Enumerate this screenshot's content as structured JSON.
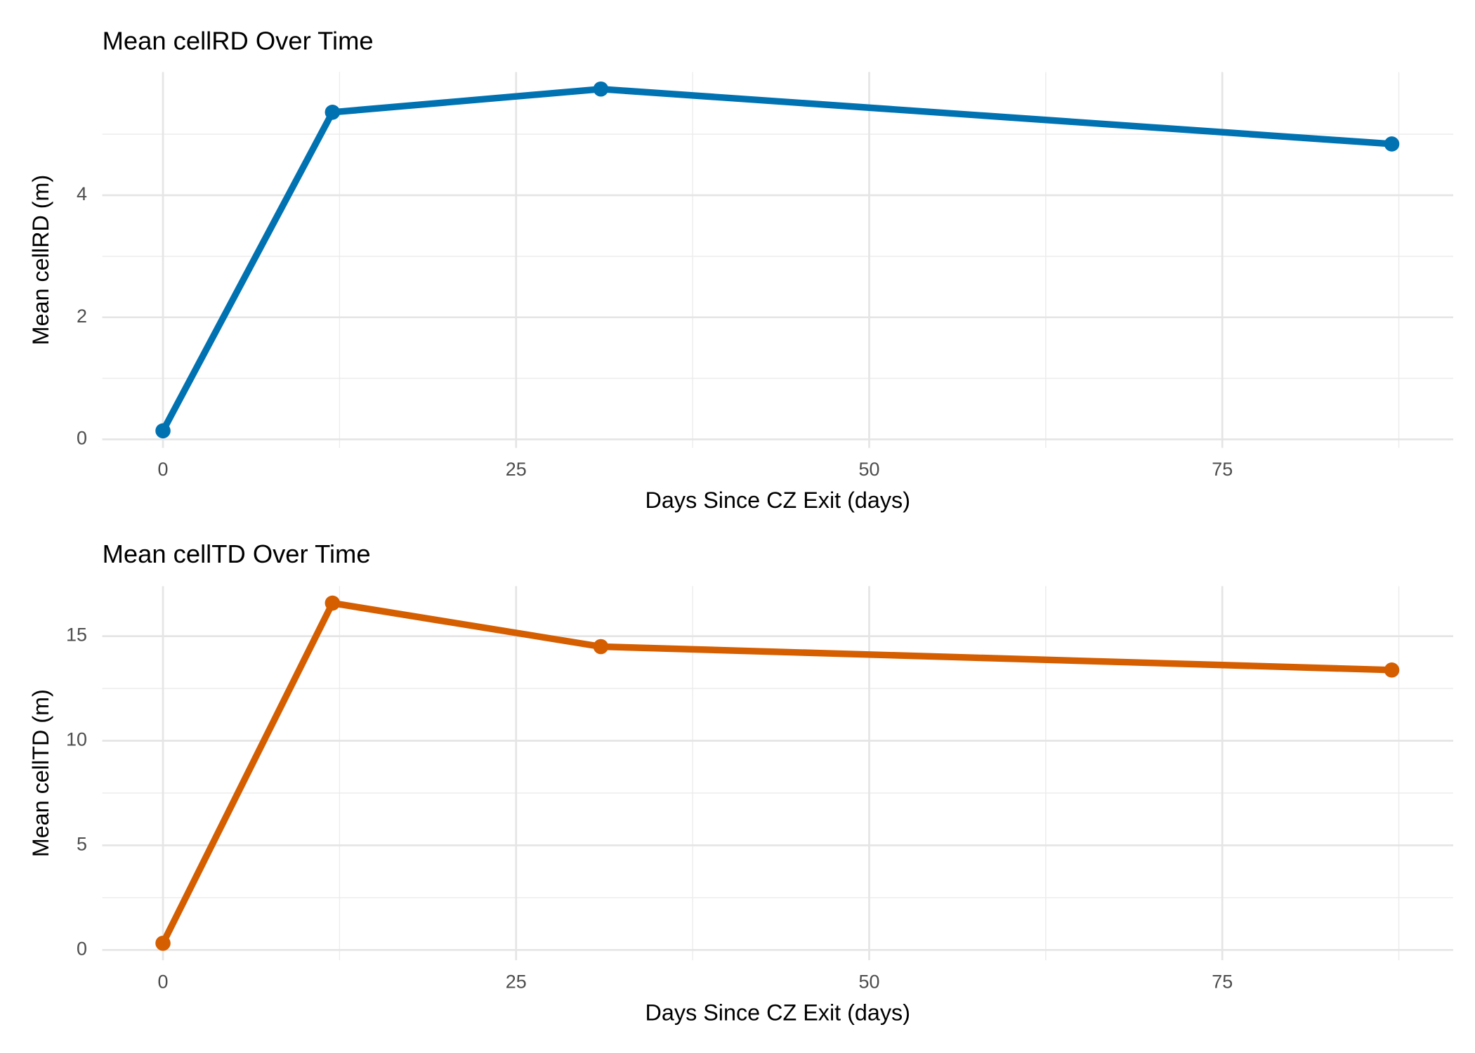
{
  "chart_data": [
    {
      "type": "line",
      "title": "Mean cellRD Over Time",
      "x_label": "Days Since CZ Exit (days)",
      "y_label": "Mean cellRD (m)",
      "x": [
        0,
        12,
        31,
        87
      ],
      "series": [
        {
          "color": "#0072b2",
          "values": [
            0.14,
            5.36,
            5.74,
            4.84
          ]
        }
      ],
      "xlim": [
        -4.3,
        91.35
      ],
      "xticks": [
        0,
        25,
        50,
        75
      ],
      "ylim": [
        -0.14,
        6.02
      ],
      "yticks": [
        0,
        2,
        4
      ],
      "grid": true
    },
    {
      "type": "line",
      "title": "Mean cellTD Over Time",
      "x_label": "Days Since CZ Exit (days)",
      "y_label": "Mean cellTD (m)",
      "x": [
        0,
        12,
        31,
        87
      ],
      "series": [
        {
          "color": "#d55e00",
          "values": [
            0.32,
            16.58,
            14.5,
            13.38
          ]
        }
      ],
      "xlim": [
        -4.3,
        91.35
      ],
      "xticks": [
        0,
        25,
        50,
        75
      ],
      "ylim": [
        -0.49,
        17.39
      ],
      "yticks": [
        0,
        5,
        10,
        15
      ],
      "grid": true
    }
  ]
}
